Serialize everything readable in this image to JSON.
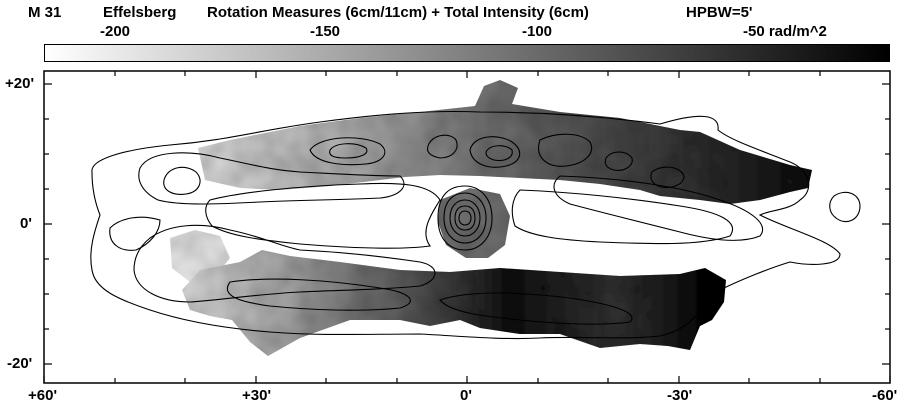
{
  "header": {
    "object": "M 31",
    "telescope": "Effelsberg",
    "title": "Rotation Measures (6cm/11cm) + Total Intensity (6cm)",
    "beam": "HPBW=5'"
  },
  "colorbar": {
    "labels": [
      "-200",
      "-150",
      "-100",
      "-50 rad/m^2"
    ],
    "gradient_from": "#ffffff",
    "gradient_to": "#000000"
  },
  "axes": {
    "x_ticks": [
      "+60'",
      "+30'",
      "0'",
      "-30'",
      "-60'"
    ],
    "y_ticks": [
      "+20'",
      "0'",
      "-20'"
    ]
  },
  "colors": {
    "frame": "#000000",
    "contour": "#000000",
    "background": "#ffffff"
  }
}
